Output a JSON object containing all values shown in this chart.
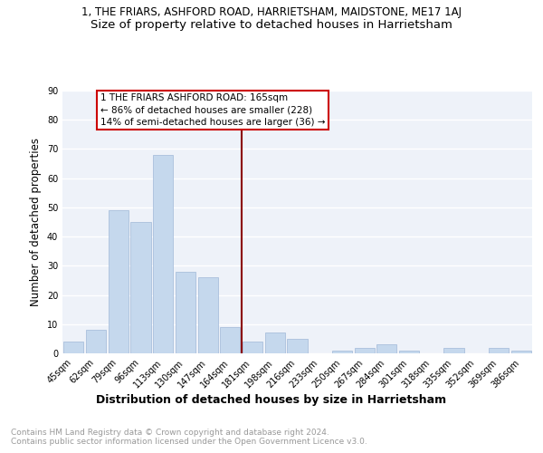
{
  "title_line1": "1, THE FRIARS, ASHFORD ROAD, HARRIETSHAM, MAIDSTONE, ME17 1AJ",
  "title_line2": "Size of property relative to detached houses in Harrietsham",
  "xlabel": "Distribution of detached houses by size in Harrietsham",
  "ylabel": "Number of detached properties",
  "categories": [
    "45sqm",
    "62sqm",
    "79sqm",
    "96sqm",
    "113sqm",
    "130sqm",
    "147sqm",
    "164sqm",
    "181sqm",
    "198sqm",
    "216sqm",
    "233sqm",
    "250sqm",
    "267sqm",
    "284sqm",
    "301sqm",
    "318sqm",
    "335sqm",
    "352sqm",
    "369sqm",
    "386sqm"
  ],
  "values": [
    4,
    8,
    49,
    45,
    68,
    28,
    26,
    9,
    4,
    7,
    5,
    0,
    1,
    2,
    3,
    1,
    0,
    2,
    0,
    2,
    1
  ],
  "bar_color": "#c5d8ed",
  "bar_edge_color": "#a0b8d8",
  "vline_color": "#8b0000",
  "vline_x": 7.5,
  "annotation_text": "1 THE FRIARS ASHFORD ROAD: 165sqm\n← 86% of detached houses are smaller (228)\n14% of semi-detached houses are larger (36) →",
  "annotation_box_color": "#ffffff",
  "annotation_box_edge_color": "#cc0000",
  "ylim": [
    0,
    90
  ],
  "yticks": [
    0,
    10,
    20,
    30,
    40,
    50,
    60,
    70,
    80,
    90
  ],
  "footer_text": "Contains HM Land Registry data © Crown copyright and database right 2024.\nContains public sector information licensed under the Open Government Licence v3.0.",
  "bg_color": "#eef2f9",
  "grid_color": "#ffffff",
  "title_fontsize": 8.5,
  "subtitle_fontsize": 9.5,
  "ylabel_fontsize": 8.5,
  "xlabel_fontsize": 9,
  "tick_fontsize": 7,
  "annotation_fontsize": 7.5,
  "footer_fontsize": 6.5,
  "footer_color": "#999999"
}
